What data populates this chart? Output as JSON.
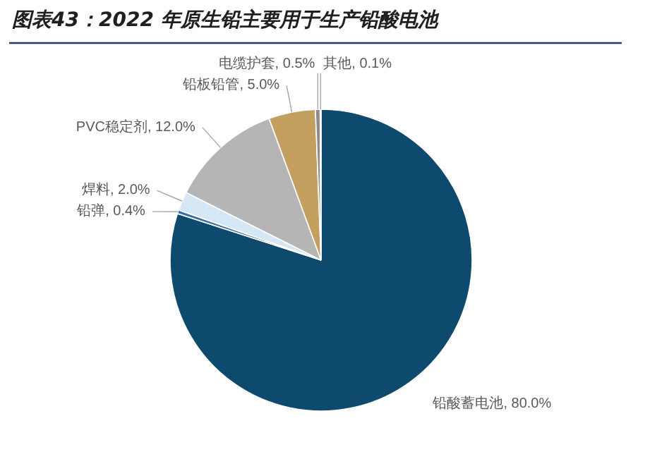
{
  "chart_data": {
    "type": "pie",
    "title": "图表43：2022 年原生铅主要用于生产铅酸电池",
    "categories": [
      "铅酸蓄电池",
      "铅弹",
      "焊料",
      "PVC稳定剂",
      "铅板铅管",
      "电缆护套",
      "其他"
    ],
    "values": [
      80.0,
      0.4,
      2.0,
      12.0,
      5.0,
      0.5,
      0.1
    ],
    "colors": [
      "#0e4a6e",
      "#3b6fa0",
      "#d5e6f4",
      "#b5b5b5",
      "#c4a060",
      "#8c8c8c",
      "#c8c8c8"
    ],
    "value_labels": [
      "80.0%",
      "0.4%",
      "2.0%",
      "12.0%",
      "5.0%",
      "0.5%",
      "0.1%"
    ],
    "legend": false
  }
}
